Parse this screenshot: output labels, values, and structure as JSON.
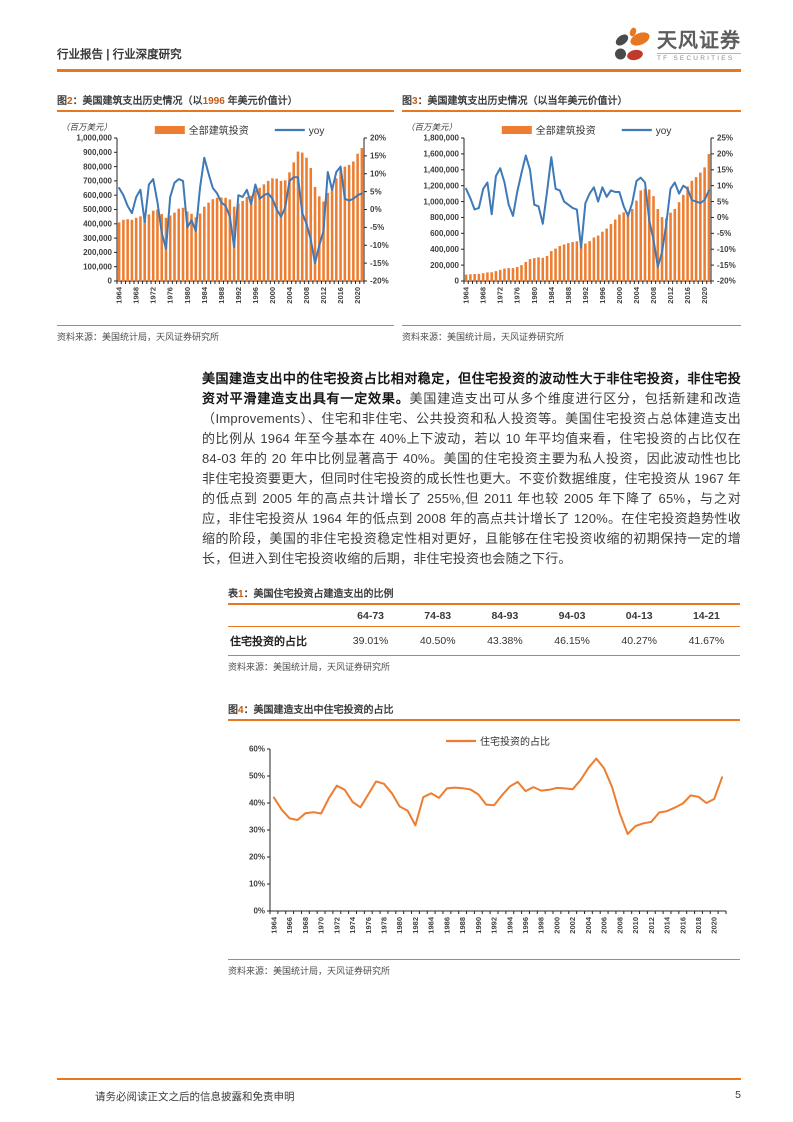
{
  "header": {
    "left_title": "行业报告 | 行业深度研究",
    "brand_cn": "天风证券",
    "brand_en": "TF SECURITIES"
  },
  "colors": {
    "accent_orange": "#E87722",
    "bar_orange": "#ED7D31",
    "line_blue": "#3E79B8",
    "caption_number_orange": "#C55A11",
    "text_dark": "#3C3C3C",
    "source_gray": "#4D4D4D"
  },
  "paragraph": {
    "lead": "美国建造支出中的住宅投资占比相对稳定，但住宅投资的波动性大于非住宅投资，非住宅投资对平滑建造支出具有一定效果。",
    "body": "美国建造支出可从多个维度进行区分，包括新建和改造（Improvements）、住宅和非住宅、公共投资和私人投资等。美国住宅投资占总体建造支出的比例从 1964 年至今基本在 40%上下波动，若以 10 年平均值来看，住宅投资的占比仅在 84-03 年的 20 年中比例显著高于 40%。美国的住宅投资主要为私人投资，因此波动性也比非住宅投资要更大，但同时住宅投资的成长性也更大。不变价数据维度，住宅投资从 1967 年的低点到 2005 年的高点共计增长了 255%,但 2011 年也较 2005 年下降了 65%，与之对应，非住宅投资从 1964 年的低点到 2008 年的高点共计增长了 120%。在住宅投资趋势性收缩的阶段，美国的非住宅投资稳定性相对更好，且能够在住宅投资收缩的初期保持一定的增长，但进入到住宅投资收缩的后期，非住宅投资也会随之下行。"
  },
  "table": {
    "caption": "表1：美国住宅投资占建造支出的比例",
    "columns": [
      "",
      "64-73",
      "74-83",
      "84-93",
      "94-03",
      "04-13",
      "14-21"
    ],
    "rows": [
      {
        "label": "住宅投资的占比",
        "values": [
          "39.01%",
          "40.50%",
          "43.38%",
          "46.15%",
          "40.27%",
          "41.67%"
        ]
      }
    ],
    "source": "资料来源：美国统计局，天风证券研究所"
  },
  "footer": {
    "disclaimer": "请务必阅读正文之后的信息披露和免责申明",
    "page_number": "5"
  },
  "chart_data": [
    {
      "type": "bar+line",
      "title": "图2：美国建筑支出历史情况（以1996 年美元价值计）",
      "unit_label": "（百万美元）",
      "source": "资料来源：美国统计局，天风证券研究所",
      "legend_position": "top",
      "grid": false,
      "x_tick_every": 4,
      "categories": [
        1964,
        1965,
        1966,
        1967,
        1968,
        1969,
        1970,
        1971,
        1972,
        1973,
        1974,
        1975,
        1976,
        1977,
        1978,
        1979,
        1980,
        1981,
        1982,
        1983,
        1984,
        1985,
        1986,
        1987,
        1988,
        1989,
        1990,
        1991,
        1992,
        1993,
        1994,
        1995,
        1996,
        1997,
        1998,
        1999,
        2000,
        2001,
        2002,
        2003,
        2004,
        2005,
        2006,
        2007,
        2008,
        2009,
        2010,
        2011,
        2012,
        2013,
        2014,
        2015,
        2016,
        2017,
        2018,
        2019,
        2020,
        2021
      ],
      "y_left": {
        "min": 0,
        "max": 1000000,
        "step": 100000,
        "percent": false
      },
      "y_right": {
        "min": -20,
        "max": 20,
        "step": 5,
        "percent": true
      },
      "series": [
        {
          "name": "全部建筑投资",
          "type": "bar",
          "axis": "left",
          "color": "#ED7D31",
          "values": [
            410000,
            428000,
            432000,
            428000,
            442000,
            452000,
            436000,
            466000,
            492000,
            500000,
            468000,
            442000,
            458000,
            478000,
            506000,
            512000,
            486000,
            470000,
            446000,
            472000,
            520000,
            548000,
            572000,
            582000,
            584000,
            582000,
            570000,
            520000,
            542000,
            560000,
            588000,
            596000,
            636000,
            652000,
            676000,
            700000,
            718000,
            716000,
            700000,
            704000,
            760000,
            830000,
            905000,
            898000,
            862000,
            790000,
            658000,
            592000,
            556000,
            616000,
            650000,
            718000,
            780000,
            800000,
            812000,
            836000,
            890000,
            930000
          ]
        },
        {
          "name": "yoy",
          "type": "line",
          "axis": "right",
          "color": "#3E79B8",
          "values": [
            6,
            4,
            1,
            -1,
            3.5,
            5.5,
            -3.5,
            7,
            8.5,
            2,
            -6.5,
            -11,
            3.5,
            7.5,
            8.5,
            8,
            -5,
            -3,
            -6,
            6,
            14.5,
            10,
            6,
            4.5,
            2,
            1,
            -2,
            -10.5,
            4,
            3.5,
            5.5,
            1.5,
            7,
            3,
            4,
            4.5,
            3,
            0,
            -2,
            0.5,
            8,
            9,
            9,
            -1,
            -4,
            -8.5,
            -15,
            -10,
            -6,
            10.5,
            5.5,
            10.5,
            12,
            3,
            2.5,
            3,
            4,
            4.5
          ]
        }
      ]
    },
    {
      "type": "bar+line",
      "title": "图3：美国建筑支出历史情况（以当年美元价值计）",
      "unit_label": "（百万美元）",
      "source": "资料来源：美国统计局，天风证券研究所",
      "legend_position": "top",
      "grid": false,
      "x_tick_every": 4,
      "categories": [
        1964,
        1965,
        1966,
        1967,
        1968,
        1969,
        1970,
        1971,
        1972,
        1973,
        1974,
        1975,
        1976,
        1977,
        1978,
        1979,
        1980,
        1981,
        1982,
        1983,
        1984,
        1985,
        1986,
        1987,
        1988,
        1989,
        1990,
        1991,
        1992,
        1993,
        1994,
        1995,
        1996,
        1997,
        1998,
        1999,
        2000,
        2001,
        2002,
        2003,
        2004,
        2005,
        2006,
        2007,
        2008,
        2009,
        2010,
        2011,
        2012,
        2013,
        2014,
        2015,
        2016,
        2017,
        2018,
        2019,
        2020,
        2021
      ],
      "y_left": {
        "min": 0,
        "max": 1800000,
        "step": 200000,
        "percent": false
      },
      "y_right": {
        "min": -20,
        "max": 25,
        "step": 5,
        "percent": true
      },
      "series": [
        {
          "name": "全部建筑投资",
          "type": "bar",
          "axis": "left",
          "color": "#ED7D31",
          "values": [
            80000,
            85000,
            88000,
            90000,
            98000,
            108000,
            110000,
            124000,
            140000,
            156000,
            162000,
            162000,
            176000,
            200000,
            240000,
            276000,
            288000,
            298000,
            292000,
            316000,
            376000,
            408000,
            440000,
            460000,
            476000,
            490000,
            500000,
            456000,
            472000,
            502000,
            548000,
            572000,
            620000,
            660000,
            716000,
            774000,
            836000,
            864000,
            868000,
            908000,
            1012000,
            1140000,
            1160000,
            1152000,
            1068000,
            906000,
            804000,
            788000,
            860000,
            906000,
            992000,
            1084000,
            1190000,
            1262000,
            1308000,
            1364000,
            1430000,
            1598000
          ]
        },
        {
          "name": "yoy",
          "type": "line",
          "axis": "right",
          "color": "#3E79B8",
          "values": [
            9,
            6,
            2.5,
            3,
            9,
            11,
            1,
            13,
            15.5,
            11,
            4,
            0.5,
            8,
            14,
            19.5,
            15,
            4,
            3.5,
            -2,
            8,
            19,
            9,
            8.5,
            5,
            4,
            3,
            2.5,
            -9.5,
            4.5,
            7.5,
            9.5,
            5,
            9.5,
            6.5,
            8.5,
            8,
            8,
            3.5,
            0.5,
            4.5,
            11.5,
            12.5,
            11,
            -1,
            -7,
            -15.5,
            -11,
            -2,
            9,
            11,
            7.5,
            10,
            9,
            5.5,
            5,
            4.5,
            5.5,
            8.5
          ]
        }
      ]
    },
    {
      "type": "line",
      "title": "图4：美国建造支出中住宅投资的占比",
      "unit_label": "",
      "source": "资料来源：美国统计局，天风证券研究所",
      "legend_position": "top",
      "grid": false,
      "x_tick_every": 2,
      "categories": [
        1964,
        1965,
        1966,
        1967,
        1968,
        1969,
        1970,
        1971,
        1972,
        1973,
        1974,
        1975,
        1976,
        1977,
        1978,
        1979,
        1980,
        1981,
        1982,
        1983,
        1984,
        1985,
        1986,
        1987,
        1988,
        1989,
        1990,
        1991,
        1992,
        1993,
        1994,
        1995,
        1996,
        1997,
        1998,
        1999,
        2000,
        2001,
        2002,
        2003,
        2004,
        2005,
        2006,
        2007,
        2008,
        2009,
        2010,
        2011,
        2012,
        2013,
        2014,
        2015,
        2016,
        2017,
        2018,
        2019,
        2020,
        2021
      ],
      "y_left": {
        "min": 0,
        "max": 60,
        "step": 10,
        "percent": true
      },
      "y_right": null,
      "series": [
        {
          "name": "住宅投资的占比",
          "type": "line",
          "axis": "left",
          "color": "#ED7D31",
          "values": [
            42,
            37.5,
            34.3,
            33.7,
            36.2,
            36.6,
            36.1,
            41.9,
            46.4,
            44.9,
            40.4,
            38.4,
            43.2,
            48,
            47.1,
            43.6,
            38.7,
            37.2,
            31.7,
            42.2,
            43.6,
            41.9,
            45.4,
            45.7,
            45.5,
            45,
            43.2,
            39.4,
            39.2,
            42.8,
            46.1,
            47.8,
            44.4,
            45.9,
            44.6,
            44.9,
            45.6,
            45.4,
            45.1,
            48.5,
            53,
            56.5,
            52.8,
            46,
            36,
            28.5,
            31.5,
            32.5,
            33,
            36.5,
            37,
            38.3,
            39.8,
            42.8,
            42.3,
            40,
            41.5,
            49.5
          ]
        }
      ]
    }
  ]
}
